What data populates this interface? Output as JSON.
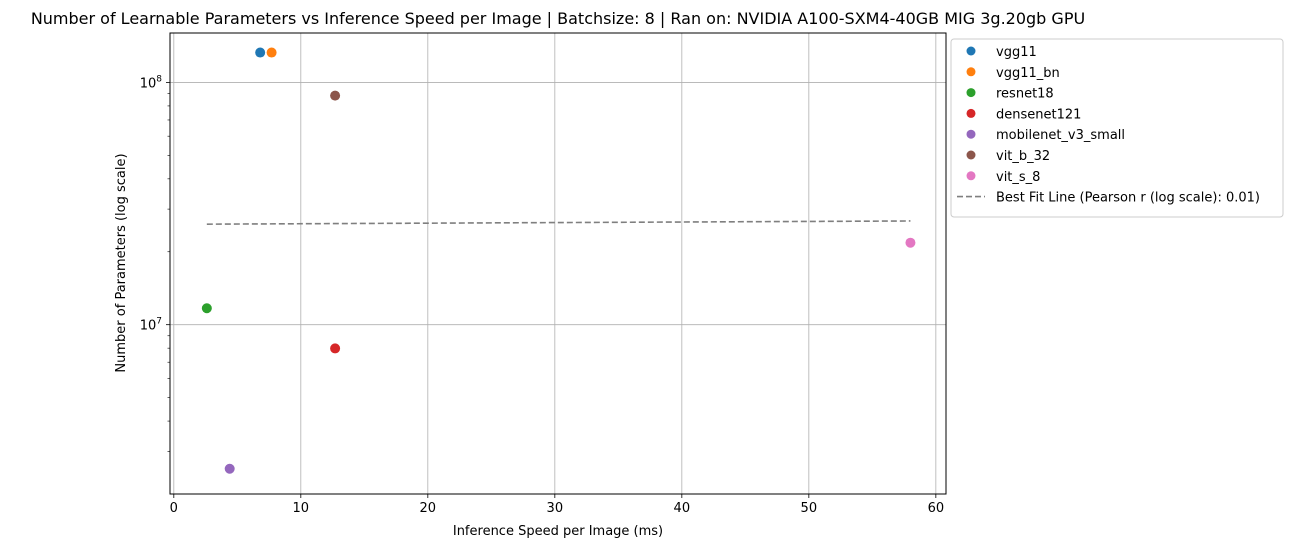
{
  "chart_data": {
    "type": "scatter",
    "title": "Number of Learnable Parameters vs Inference Speed per Image | Batchsize: 8 | Ran on: NVIDIA A100-SXM4-40GB MIG 3g.20gb GPU",
    "xlabel": "Inference Speed per Image (ms)",
    "ylabel": "Number of Parameters (log scale)",
    "xlim": [
      -0.3,
      60.8
    ],
    "ylim": [
      2000000,
      160000000
    ],
    "yscale": "log",
    "grid": true,
    "legend_position": "outside-right",
    "x_ticks": [
      0,
      10,
      20,
      30,
      40,
      50,
      60
    ],
    "x_tick_labels": [
      "0",
      "10",
      "20",
      "30",
      "40",
      "50",
      "60"
    ],
    "y_major_ticks": [
      10000000,
      100000000
    ],
    "y_tick_base": "10",
    "y_tick_exponents": [
      "7",
      "8"
    ],
    "series": [
      {
        "name": "vgg11",
        "color": "#1f77b4",
        "points": [
          [
            6.8,
            132863336
          ]
        ]
      },
      {
        "name": "vgg11_bn",
        "color": "#ff7f0e",
        "points": [
          [
            7.7,
            132868840
          ]
        ]
      },
      {
        "name": "resnet18",
        "color": "#2ca02c",
        "points": [
          [
            2.6,
            11689512
          ]
        ]
      },
      {
        "name": "densenet121",
        "color": "#d62728",
        "points": [
          [
            12.7,
            7978856
          ]
        ]
      },
      {
        "name": "mobilenet_v3_small",
        "color": "#9467bd",
        "points": [
          [
            4.4,
            2542856
          ]
        ]
      },
      {
        "name": "vit_b_32",
        "color": "#8c564b",
        "points": [
          [
            12.7,
            88224232
          ]
        ]
      },
      {
        "name": "vit_s_8",
        "color": "#e377c2",
        "points": [
          [
            58.0,
            21800000
          ]
        ]
      }
    ],
    "best_fit": {
      "name": "Best Fit Line (Pearson r (log scale): 0.01)",
      "color": "#7f7f7f",
      "style": "dashed",
      "x": [
        2.6,
        58.0
      ],
      "y": [
        26000000,
        26800000
      ]
    }
  }
}
